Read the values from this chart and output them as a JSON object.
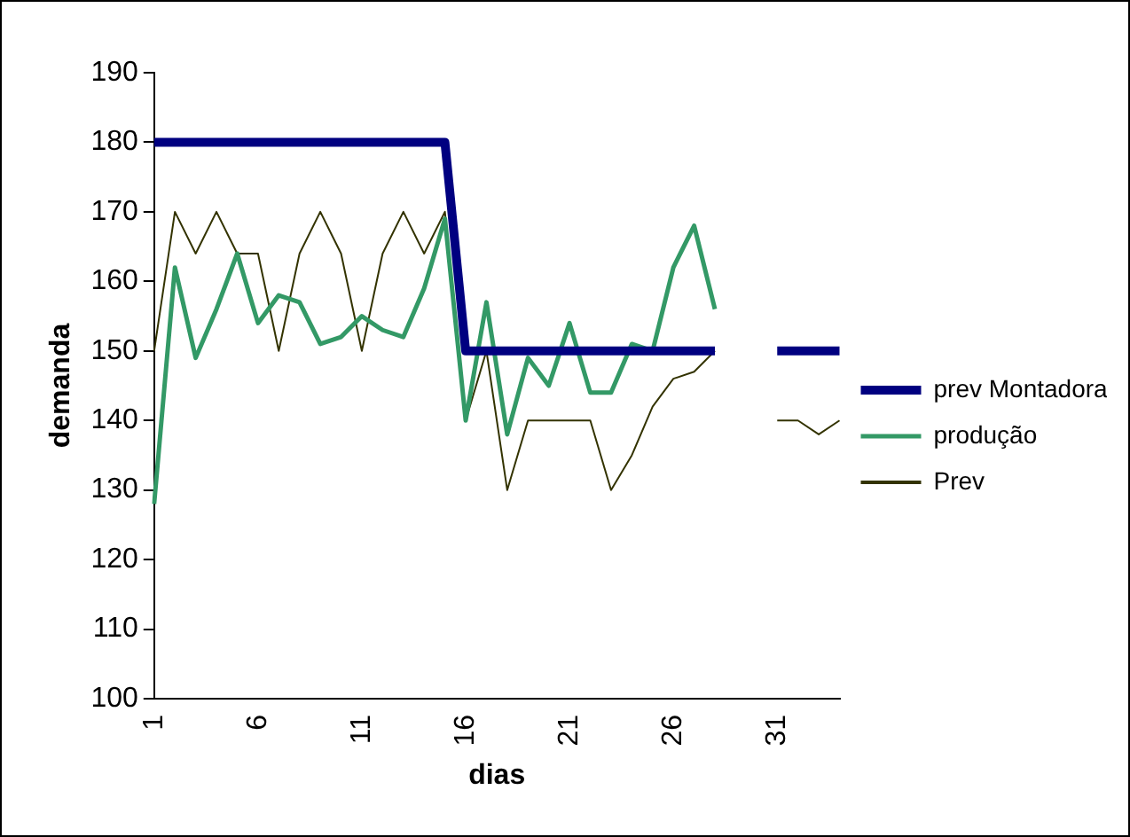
{
  "chart_data": {
    "type": "line",
    "xlabel": "dias",
    "ylabel": "demanda",
    "categories": [
      "1",
      null,
      null,
      null,
      null,
      "6",
      null,
      null,
      null,
      null,
      "11",
      null,
      null,
      null,
      null,
      "16",
      null,
      null,
      null,
      null,
      "21",
      null,
      null,
      null,
      null,
      "26",
      null,
      null,
      null,
      null,
      "31",
      null,
      null,
      null
    ],
    "series": [
      {
        "name": "prev Montadora",
        "color": "#000080",
        "values": [
          180,
          180,
          180,
          180,
          180,
          180,
          180,
          180,
          180,
          180,
          180,
          180,
          180,
          180,
          180,
          150,
          150,
          150,
          150,
          150,
          150,
          150,
          150,
          150,
          150,
          150,
          150,
          150,
          null,
          null,
          150,
          150,
          150,
          150
        ]
      },
      {
        "name": "produção",
        "color": "#339966",
        "values": [
          128,
          162,
          149,
          156,
          164,
          154,
          158,
          157,
          151,
          152,
          155,
          153,
          152,
          159,
          169,
          140,
          157,
          138,
          149,
          145,
          154,
          144,
          144,
          151,
          150,
          162,
          168,
          156,
          null,
          null,
          null,
          null,
          null,
          null
        ]
      },
      {
        "name": "Prev",
        "color": "#333300",
        "values": [
          150,
          170,
          164,
          170,
          164,
          164,
          150,
          164,
          170,
          164,
          150,
          164,
          170,
          164,
          170,
          140,
          150,
          130,
          140,
          140,
          140,
          140,
          130,
          135,
          142,
          146,
          147,
          150,
          null,
          null,
          140,
          140,
          138,
          140
        ]
      }
    ],
    "ylim": [
      100,
      190
    ],
    "yticks": [
      100,
      110,
      120,
      130,
      140,
      150,
      160,
      170,
      180,
      190
    ],
    "grid": false,
    "legend": "right",
    "marker": "none",
    "line_style": "solid"
  }
}
